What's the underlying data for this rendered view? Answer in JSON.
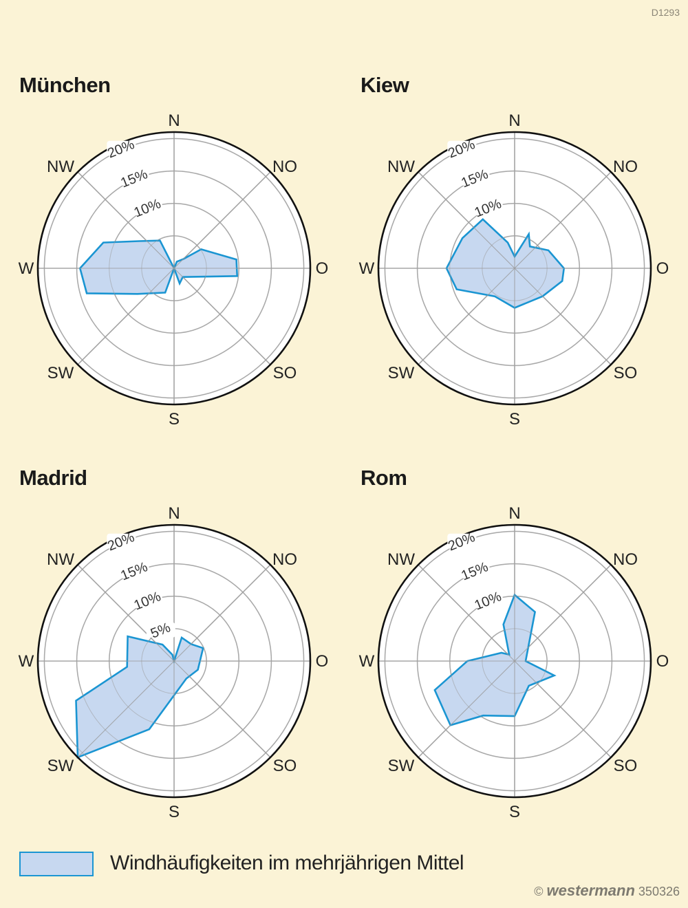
{
  "code_label": "D1293",
  "legend": {
    "label": "Windhäufigkeiten im mehrjährigen Mittel"
  },
  "publisher": {
    "copyright": "©",
    "brand": "westermann",
    "number": "350326"
  },
  "colors": {
    "fill": "#c7d8f0",
    "stroke": "#1a95d2",
    "background": "#fbf3d6",
    "grid": "#b5b5b5"
  },
  "chart_data": [
    {
      "type": "radar",
      "title": "München",
      "directions": [
        "N",
        "NO",
        "O",
        "SO",
        "S",
        "SW",
        "W",
        "NW"
      ],
      "ring_labels": [
        "10%",
        "15%",
        "20%"
      ],
      "rmax": 21,
      "polygon": [
        {
          "dir": 0,
          "r": 0
        },
        {
          "dir": 22.5,
          "r": 1.1
        },
        {
          "dir": 45,
          "r": 2.0
        },
        {
          "dir": 55,
          "r": 5.1
        },
        {
          "dir": 82,
          "r": 9.7
        },
        {
          "dir": 97,
          "r": 9.8
        },
        {
          "dir": 135,
          "r": 1.9
        },
        {
          "dir": 160,
          "r": 2.5
        },
        {
          "dir": 180,
          "r": 0
        },
        {
          "dir": 200,
          "r": 4.0
        },
        {
          "dir": 235,
          "r": 6.9
        },
        {
          "dir": 254,
          "r": 14.0
        },
        {
          "dir": 270,
          "r": 14.5
        },
        {
          "dir": 290,
          "r": 11.6
        },
        {
          "dir": 308,
          "r": 6.8
        },
        {
          "dir": 333,
          "r": 4.8
        }
      ]
    },
    {
      "type": "radar",
      "title": "Kiew",
      "directions": [
        "N",
        "NO",
        "O",
        "SO",
        "S",
        "SW",
        "W",
        "NW"
      ],
      "ring_labels": [
        "10%",
        "15%",
        "20%"
      ],
      "rmax": 21,
      "polygon": [
        {
          "dir": 0,
          "r": 1.8
        },
        {
          "dir": 22.5,
          "r": 5.7
        },
        {
          "dir": 35,
          "r": 4.1
        },
        {
          "dir": 62,
          "r": 5.9
        },
        {
          "dir": 90,
          "r": 7.6
        },
        {
          "dir": 105,
          "r": 7.6
        },
        {
          "dir": 135,
          "r": 6.1
        },
        {
          "dir": 180,
          "r": 6.1
        },
        {
          "dir": 215,
          "r": 5.3
        },
        {
          "dir": 250,
          "r": 9.5
        },
        {
          "dir": 270,
          "r": 10.5
        },
        {
          "dir": 300,
          "r": 9.3
        },
        {
          "dir": 327,
          "r": 9.0
        },
        {
          "dir": 345,
          "r": 4.1
        }
      ]
    },
    {
      "type": "radar",
      "title": "Madrid",
      "directions": [
        "N",
        "NO",
        "O",
        "SO",
        "S",
        "SW",
        "W",
        "NW"
      ],
      "ring_labels": [
        "5%",
        "10%",
        "15%",
        "20%"
      ],
      "rmax": 21,
      "polygon": [
        {
          "dir": 0,
          "r": 0
        },
        {
          "dir": 18,
          "r": 3.8
        },
        {
          "dir": 45,
          "r": 3.7
        },
        {
          "dir": 66,
          "r": 4.9
        },
        {
          "dir": 110,
          "r": 3.9
        },
        {
          "dir": 145,
          "r": 3.3
        },
        {
          "dir": 200,
          "r": 11.2
        },
        {
          "dir": 225,
          "r": 21.0
        },
        {
          "dir": 248,
          "r": 16.3
        },
        {
          "dir": 263,
          "r": 7.3
        },
        {
          "dir": 298,
          "r": 8.1
        },
        {
          "dir": 325,
          "r": 3.1
        },
        {
          "dir": 345,
          "r": 1.0
        }
      ]
    },
    {
      "type": "radar",
      "title": "Rom",
      "directions": [
        "N",
        "NO",
        "O",
        "SO",
        "S",
        "SW",
        "W",
        "NW"
      ],
      "ring_labels": [
        "10%",
        "15%",
        "20%"
      ],
      "rmax": 21,
      "polygon": [
        {
          "dir": 0,
          "r": 10.2
        },
        {
          "dir": 22.5,
          "r": 8.2
        },
        {
          "dir": 90,
          "r": 1.7
        },
        {
          "dir": 110,
          "r": 6.5
        },
        {
          "dir": 150,
          "r": 4.4
        },
        {
          "dir": 180,
          "r": 8.5
        },
        {
          "dir": 210,
          "r": 9.7
        },
        {
          "dir": 225,
          "r": 14.0
        },
        {
          "dir": 250,
          "r": 13.1
        },
        {
          "dir": 270,
          "r": 7.3
        },
        {
          "dir": 302,
          "r": 2.4
        },
        {
          "dir": 320,
          "r": 1.3
        },
        {
          "dir": 343,
          "r": 5.9
        }
      ]
    }
  ]
}
